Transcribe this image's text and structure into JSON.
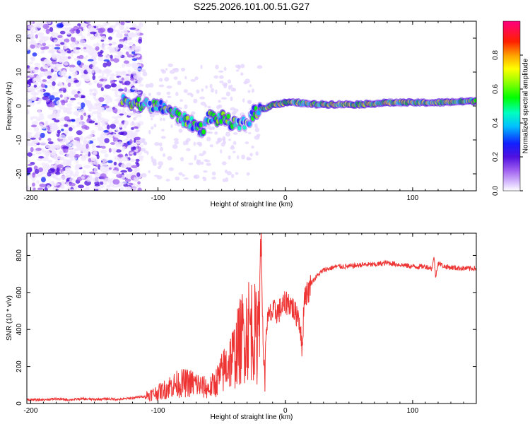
{
  "chart_data": [
    {
      "type": "heatmap",
      "title": "S225.2026.101.00.51.G27",
      "xlabel": "Height of straight line (km)",
      "ylabel": "Frequency (Hz)",
      "xlim": [
        -203,
        150
      ],
      "ylim": [
        -25,
        25
      ],
      "xticks": [
        -200,
        -100,
        0,
        100
      ],
      "xtick_labels": [
        "-200",
        "-100",
        "0",
        "100"
      ],
      "yticks": [
        -20,
        -10,
        0,
        10,
        20
      ],
      "ytick_labels": [
        "-20",
        "-10",
        "0",
        "10",
        "20"
      ],
      "colorbar": {
        "label": "Normalized spectral amplitude",
        "range": [
          0,
          1
        ],
        "ticks": [
          0.0,
          0.2,
          0.4,
          0.6,
          0.8
        ],
        "tick_labels": [
          "0.0",
          "0.2",
          "0.4",
          "0.6",
          "0.8"
        ]
      },
      "ridge": {
        "x": [
          -125,
          -115,
          -105,
          -95,
          -88,
          -80,
          -72,
          -65,
          -60,
          -55,
          -50,
          -45,
          -40,
          -35,
          -30,
          -25,
          -20,
          -15,
          -10,
          -5,
          0,
          10,
          20,
          40,
          60,
          80,
          100,
          120,
          150
        ],
        "y": [
          1.5,
          0.8,
          0,
          -0.5,
          -2,
          -4,
          -5.5,
          -7,
          -3,
          -4,
          -3.5,
          -4.5,
          -5.5,
          -5.5,
          -5,
          -2,
          -1,
          -0.5,
          0.5,
          0.5,
          1,
          1,
          0.5,
          0.5,
          0.5,
          1,
          1,
          1,
          1.5
        ]
      }
    },
    {
      "type": "line",
      "title": "",
      "xlabel": "Height of straight line (km)",
      "ylabel": "SNR (10 * v/v)",
      "xlim": [
        -203,
        150
      ],
      "ylim": [
        0,
        920
      ],
      "xticks": [
        -200,
        -100,
        0,
        100
      ],
      "xtick_labels": [
        "-200",
        "-100",
        "0",
        "100"
      ],
      "yticks": [
        0,
        200,
        400,
        600,
        800
      ],
      "ytick_labels": [
        "0",
        "200",
        "400",
        "600",
        "800"
      ],
      "line_color": "#ee3333",
      "x": [
        -203,
        -190,
        -180,
        -170,
        -160,
        -150,
        -140,
        -130,
        -120,
        -110,
        -100,
        -95,
        -90,
        -85,
        -80,
        -75,
        -70,
        -65,
        -60,
        -55,
        -50,
        -45,
        -40,
        -37,
        -34,
        -31,
        -28,
        -25,
        -22,
        -20,
        -19,
        -18,
        -17,
        -16,
        -15,
        -12,
        -10,
        -5,
        0,
        2,
        5,
        8,
        10,
        12,
        13,
        15,
        18,
        20,
        25,
        30,
        40,
        50,
        60,
        70,
        80,
        90,
        100,
        110,
        115,
        117,
        118,
        120,
        125,
        130,
        140,
        150
      ],
      "y": [
        20,
        20,
        25,
        20,
        25,
        22,
        25,
        22,
        30,
        40,
        60,
        75,
        95,
        105,
        110,
        110,
        105,
        90,
        80,
        110,
        160,
        220,
        260,
        310,
        360,
        390,
        420,
        400,
        340,
        750,
        900,
        500,
        240,
        130,
        420,
        480,
        490,
        500,
        540,
        550,
        530,
        480,
        490,
        400,
        270,
        590,
        600,
        650,
        690,
        720,
        740,
        740,
        750,
        750,
        760,
        750,
        740,
        740,
        730,
        790,
        680,
        760,
        740,
        735,
        730,
        730
      ]
    }
  ]
}
